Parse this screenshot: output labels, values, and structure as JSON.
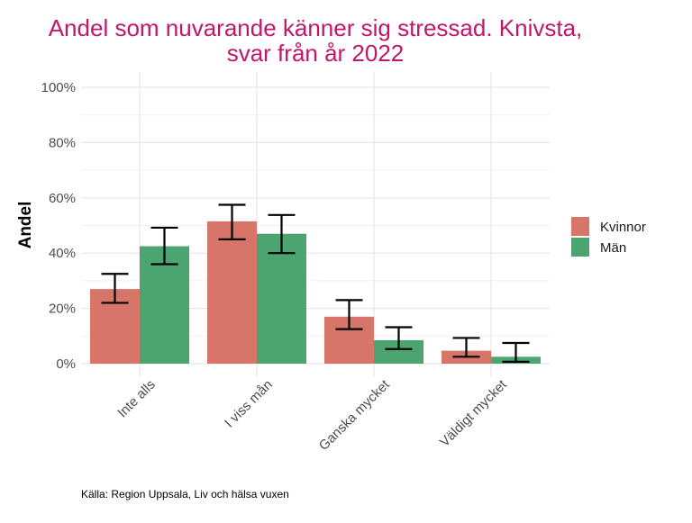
{
  "chart_data": {
    "type": "bar",
    "title": "Andel som nuvarande känner sig stressad. Knivsta,",
    "subtitle": "svar från år 2022",
    "xlabel": "",
    "ylabel": "Andel",
    "ylim": [
      0,
      1
    ],
    "yticks": [
      0,
      0.2,
      0.4,
      0.6,
      0.8,
      1.0
    ],
    "ytick_labels": [
      "0%",
      "20%",
      "40%",
      "60%",
      "80%",
      "100%"
    ],
    "categories": [
      "Inte alls",
      "I viss mån",
      "Ganska mycket",
      "Väldigt mycket"
    ],
    "series": [
      {
        "name": "Kvinnor",
        "color": "#D67568",
        "values": [
          0.27,
          0.515,
          0.17,
          0.047
        ],
        "error_low": [
          0.22,
          0.45,
          0.125,
          0.025
        ],
        "error_high": [
          0.325,
          0.575,
          0.23,
          0.093
        ]
      },
      {
        "name": "Män",
        "color": "#4CA571",
        "values": [
          0.425,
          0.47,
          0.085,
          0.025
        ],
        "error_low": [
          0.36,
          0.4,
          0.053,
          0.007
        ],
        "error_high": [
          0.492,
          0.538,
          0.132,
          0.075
        ]
      }
    ],
    "grid": true,
    "legend_position": "right",
    "caption": "Källa: Region Uppsala, Liv och hälsa vuxen"
  }
}
